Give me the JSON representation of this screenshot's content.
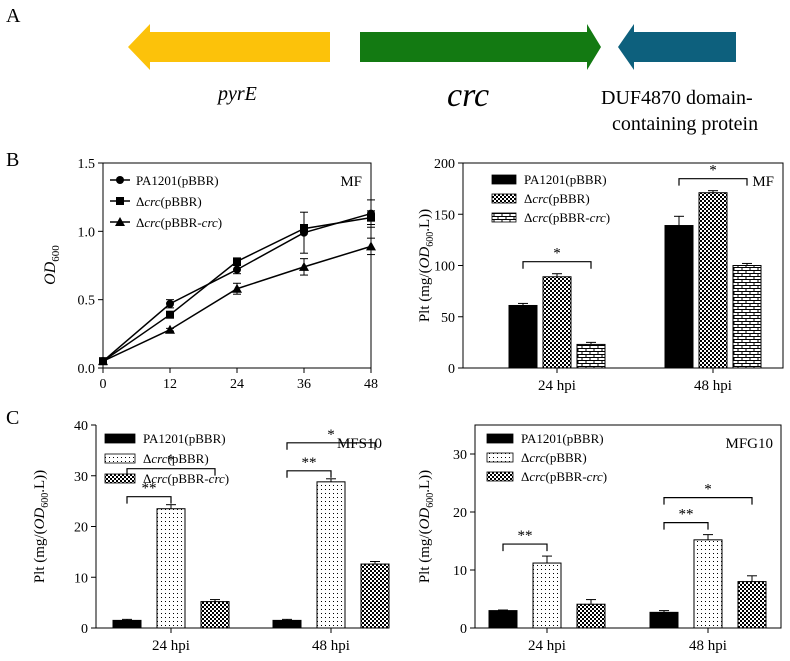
{
  "panel_labels": {
    "a": "A",
    "b": "B",
    "c": "C"
  },
  "gene_map": {
    "genes": [
      {
        "name": "pyrE",
        "color": "#fcc20a",
        "direction": "left"
      },
      {
        "name": "crc",
        "color": "#137a12",
        "direction": "right"
      },
      {
        "name": "DUF4870 domain-",
        "name2": "containing protein",
        "color": "#0d607d",
        "direction": "left"
      }
    ]
  },
  "chart_data": [
    {
      "id": "growth",
      "type": "line",
      "annotation": "MF",
      "xlabel": "",
      "ylabel": "OD",
      "ylabel_sub": "600",
      "x": [
        0,
        12,
        24,
        36,
        48
      ],
      "xticks": [
        "0",
        "12",
        "24",
        "36",
        "48"
      ],
      "ylim": [
        0,
        1.5
      ],
      "yticks": [
        "0.0",
        "0.5",
        "1.0",
        "1.5"
      ],
      "series": [
        {
          "name": "PA1201(pBBR)",
          "marker": "circle",
          "values": [
            0.05,
            0.47,
            0.72,
            0.99,
            1.13
          ],
          "err": [
            0.0,
            0.03,
            0.03,
            0.15,
            0.1
          ]
        },
        {
          "name": "Δcrc(pBBR)",
          "marker": "square",
          "values": [
            0.05,
            0.39,
            0.78,
            1.02,
            1.1
          ],
          "err": [
            0.0,
            0.02,
            0.02,
            0.03,
            0.05
          ]
        },
        {
          "name": "Δcrc(pBBR-crc)",
          "marker": "triangle",
          "values": [
            0.05,
            0.28,
            0.58,
            0.74,
            0.89
          ],
          "err": [
            0.0,
            0.01,
            0.04,
            0.06,
            0.06
          ]
        }
      ]
    },
    {
      "id": "plt_mf",
      "type": "bar",
      "annotation": "MF",
      "ylabel": "Plt (mg/(OD600.L))",
      "categories": [
        "24 hpi",
        "48 hpi"
      ],
      "ylim": [
        0,
        200
      ],
      "yticks": [
        "0",
        "50",
        "100",
        "150",
        "200"
      ],
      "series": [
        {
          "name": "PA1201(pBBR)",
          "pattern": "solid",
          "values": [
            61,
            139
          ],
          "err": [
            2,
            9
          ]
        },
        {
          "name": "Δcrc(pBBR)",
          "pattern": "check",
          "values": [
            89,
            171
          ],
          "err": [
            3,
            2
          ]
        },
        {
          "name": "Δcrc(pBBR-crc)",
          "pattern": "brick",
          "values": [
            23,
            100
          ],
          "err": [
            2,
            2
          ]
        }
      ],
      "significance": [
        {
          "category": 0,
          "from": 0,
          "to": 2,
          "label": "*"
        },
        {
          "category": 1,
          "from": 0,
          "to": 2,
          "label": "*"
        }
      ]
    },
    {
      "id": "plt_mfs10",
      "type": "bar",
      "annotation": "MFS10",
      "ylabel": "Plt (mg/(OD600.L))",
      "categories": [
        "24 hpi",
        "48 hpi"
      ],
      "ylim": [
        0,
        40
      ],
      "yticks": [
        "0",
        "10",
        "20",
        "30",
        "40"
      ],
      "series": [
        {
          "name": "PA1201(pBBR)",
          "pattern": "solid",
          "values": [
            1.5,
            1.5
          ],
          "err": [
            0.2,
            0.2
          ]
        },
        {
          "name": "Δcrc(pBBR)",
          "pattern": "dots",
          "values": [
            23.5,
            28.8
          ],
          "err": [
            0.8,
            0.6
          ]
        },
        {
          "name": "Δcrc(pBBR-crc)",
          "pattern": "check",
          "values": [
            5.2,
            12.6
          ],
          "err": [
            0.4,
            0.5
          ]
        }
      ],
      "significance": [
        {
          "category": 0,
          "from": 0,
          "to": 1,
          "label": "**"
        },
        {
          "category": 0,
          "from": 0,
          "to": 2,
          "label": "*"
        },
        {
          "category": 1,
          "from": 0,
          "to": 1,
          "label": "**"
        },
        {
          "category": 1,
          "from": 0,
          "to": 2,
          "label": "*"
        }
      ]
    },
    {
      "id": "plt_mfg10",
      "type": "bar",
      "annotation": "MFG10",
      "ylabel": "Plt (mg/(OD600.L))",
      "categories": [
        "24 hpi",
        "48 hpi"
      ],
      "ylim": [
        0,
        35
      ],
      "yticks": [
        "0",
        "10",
        "20",
        "30"
      ],
      "series": [
        {
          "name": "PA1201(pBBR)",
          "pattern": "solid",
          "values": [
            3.0,
            2.7
          ],
          "err": [
            0.1,
            0.3
          ]
        },
        {
          "name": "Δcrc(pBBR)",
          "pattern": "dots",
          "values": [
            11.2,
            15.2
          ],
          "err": [
            1.2,
            0.9
          ]
        },
        {
          "name": "Δcrc(pBBR-crc)",
          "pattern": "check",
          "values": [
            4.1,
            8.0
          ],
          "err": [
            0.8,
            1.0
          ]
        }
      ],
      "significance": [
        {
          "category": 0,
          "from": 0,
          "to": 1,
          "label": "**"
        },
        {
          "category": 1,
          "from": 0,
          "to": 1,
          "label": "**"
        },
        {
          "category": 1,
          "from": 0,
          "to": 2,
          "label": "*"
        }
      ]
    }
  ]
}
